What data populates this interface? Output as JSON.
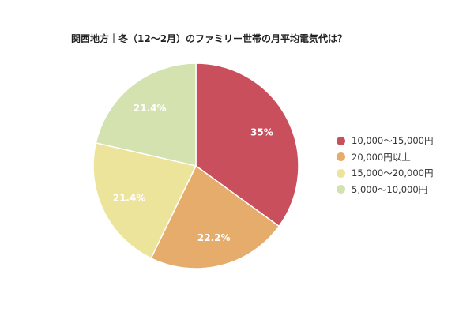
{
  "chart_data": {
    "type": "pie",
    "title": "関西地方｜冬（12〜2月）のファミリー世帯の月平均電気代は？",
    "slices": [
      {
        "label": "10,000〜15,000円",
        "value": 35.0,
        "value_label": "35%",
        "color": "#c94f5c"
      },
      {
        "label": "20,000円以上",
        "value": 22.2,
        "value_label": "22.2%",
        "color": "#e6ac6b"
      },
      {
        "label": "15,000〜20,000円",
        "value": 21.4,
        "value_label": "21.4%",
        "color": "#ede49c"
      },
      {
        "label": "5,000〜10,000円",
        "value": 21.4,
        "value_label": "21.4%",
        "color": "#d4e2b0"
      }
    ],
    "legend_position": "right"
  }
}
